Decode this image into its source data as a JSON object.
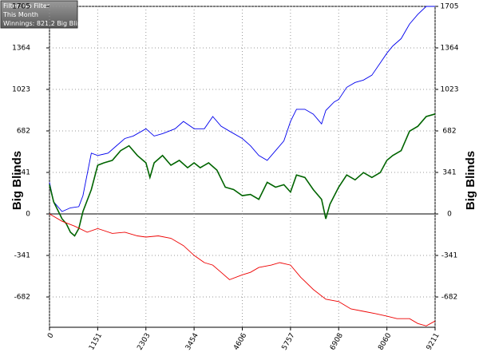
{
  "chart_data": {
    "type": "line",
    "info": [
      "Filter: No Filter",
      "This Month",
      "Winnings: 821.2 Big Blinds"
    ],
    "y_label": "Big Blinds",
    "xlim": [
      0,
      9211
    ],
    "xticks": [
      0,
      1151,
      2303,
      3454,
      4606,
      5757,
      6908,
      8060,
      9211
    ],
    "ylim": [
      -931,
      1705
    ],
    "yticks": [
      -682,
      -341,
      0,
      341,
      682,
      1023,
      1364,
      1705
    ],
    "grid": true,
    "series": [
      {
        "color": "#0000ee",
        "x": [
          0,
          100,
          300,
          500,
          700,
          800,
          1000,
          1151,
          1400,
          1600,
          1800,
          2000,
          2303,
          2500,
          2700,
          3000,
          3200,
          3454,
          3700,
          3900,
          4100,
          4300,
          4606,
          4800,
          5000,
          5200,
          5400,
          5600,
          5757,
          5900,
          6100,
          6300,
          6500,
          6600,
          6800,
          6908,
          7100,
          7300,
          7500,
          7700,
          7900,
          8060,
          8200,
          8400,
          8600,
          8800,
          9000,
          9211
        ],
        "values": [
          260,
          100,
          20,
          50,
          60,
          150,
          500,
          480,
          500,
          560,
          620,
          640,
          700,
          640,
          660,
          700,
          760,
          700,
          700,
          800,
          720,
          680,
          620,
          560,
          480,
          440,
          520,
          600,
          760,
          860,
          860,
          820,
          740,
          850,
          920,
          940,
          1040,
          1080,
          1100,
          1140,
          1240,
          1320,
          1380,
          1440,
          1560,
          1640,
          1705,
          1705
        ]
      },
      {
        "color": "#006400",
        "x": [
          0,
          100,
          300,
          400,
          500,
          600,
          700,
          800,
          1000,
          1151,
          1300,
          1500,
          1700,
          1900,
          2100,
          2303,
          2400,
          2500,
          2700,
          2900,
          3100,
          3300,
          3454,
          3600,
          3800,
          4000,
          4200,
          4400,
          4606,
          4800,
          5000,
          5200,
          5400,
          5600,
          5757,
          5900,
          6100,
          6300,
          6500,
          6600,
          6700,
          6908,
          7100,
          7300,
          7500,
          7700,
          7900,
          8060,
          8200,
          8400,
          8600,
          8800,
          9000,
          9211
        ],
        "values": [
          240,
          100,
          -40,
          -80,
          -150,
          -180,
          -120,
          20,
          200,
          400,
          420,
          440,
          520,
          560,
          480,
          420,
          300,
          420,
          480,
          400,
          440,
          380,
          420,
          380,
          420,
          360,
          220,
          200,
          150,
          160,
          120,
          260,
          220,
          240,
          180,
          320,
          300,
          200,
          120,
          -40,
          80,
          220,
          320,
          280,
          340,
          300,
          340,
          440,
          480,
          520,
          680,
          720,
          800,
          821.2
        ]
      },
      {
        "color": "#ee0000",
        "x": [
          0,
          300,
          600,
          900,
          1151,
          1500,
          1800,
          2100,
          2303,
          2600,
          2900,
          3200,
          3454,
          3700,
          3900,
          4100,
          4300,
          4606,
          4800,
          5000,
          5300,
          5500,
          5757,
          6000,
          6300,
          6600,
          6908,
          7200,
          7500,
          7800,
          8060,
          8300,
          8600,
          8800,
          9000,
          9211
        ],
        "values": [
          0,
          -60,
          -100,
          -150,
          -120,
          -160,
          -150,
          -180,
          -190,
          -180,
          -200,
          -260,
          -340,
          -400,
          -420,
          -480,
          -540,
          -500,
          -480,
          -440,
          -420,
          -400,
          -420,
          -520,
          -620,
          -700,
          -720,
          -780,
          -800,
          -820,
          -840,
          -860,
          -860,
          -900,
          -920,
          -880
        ]
      }
    ]
  }
}
